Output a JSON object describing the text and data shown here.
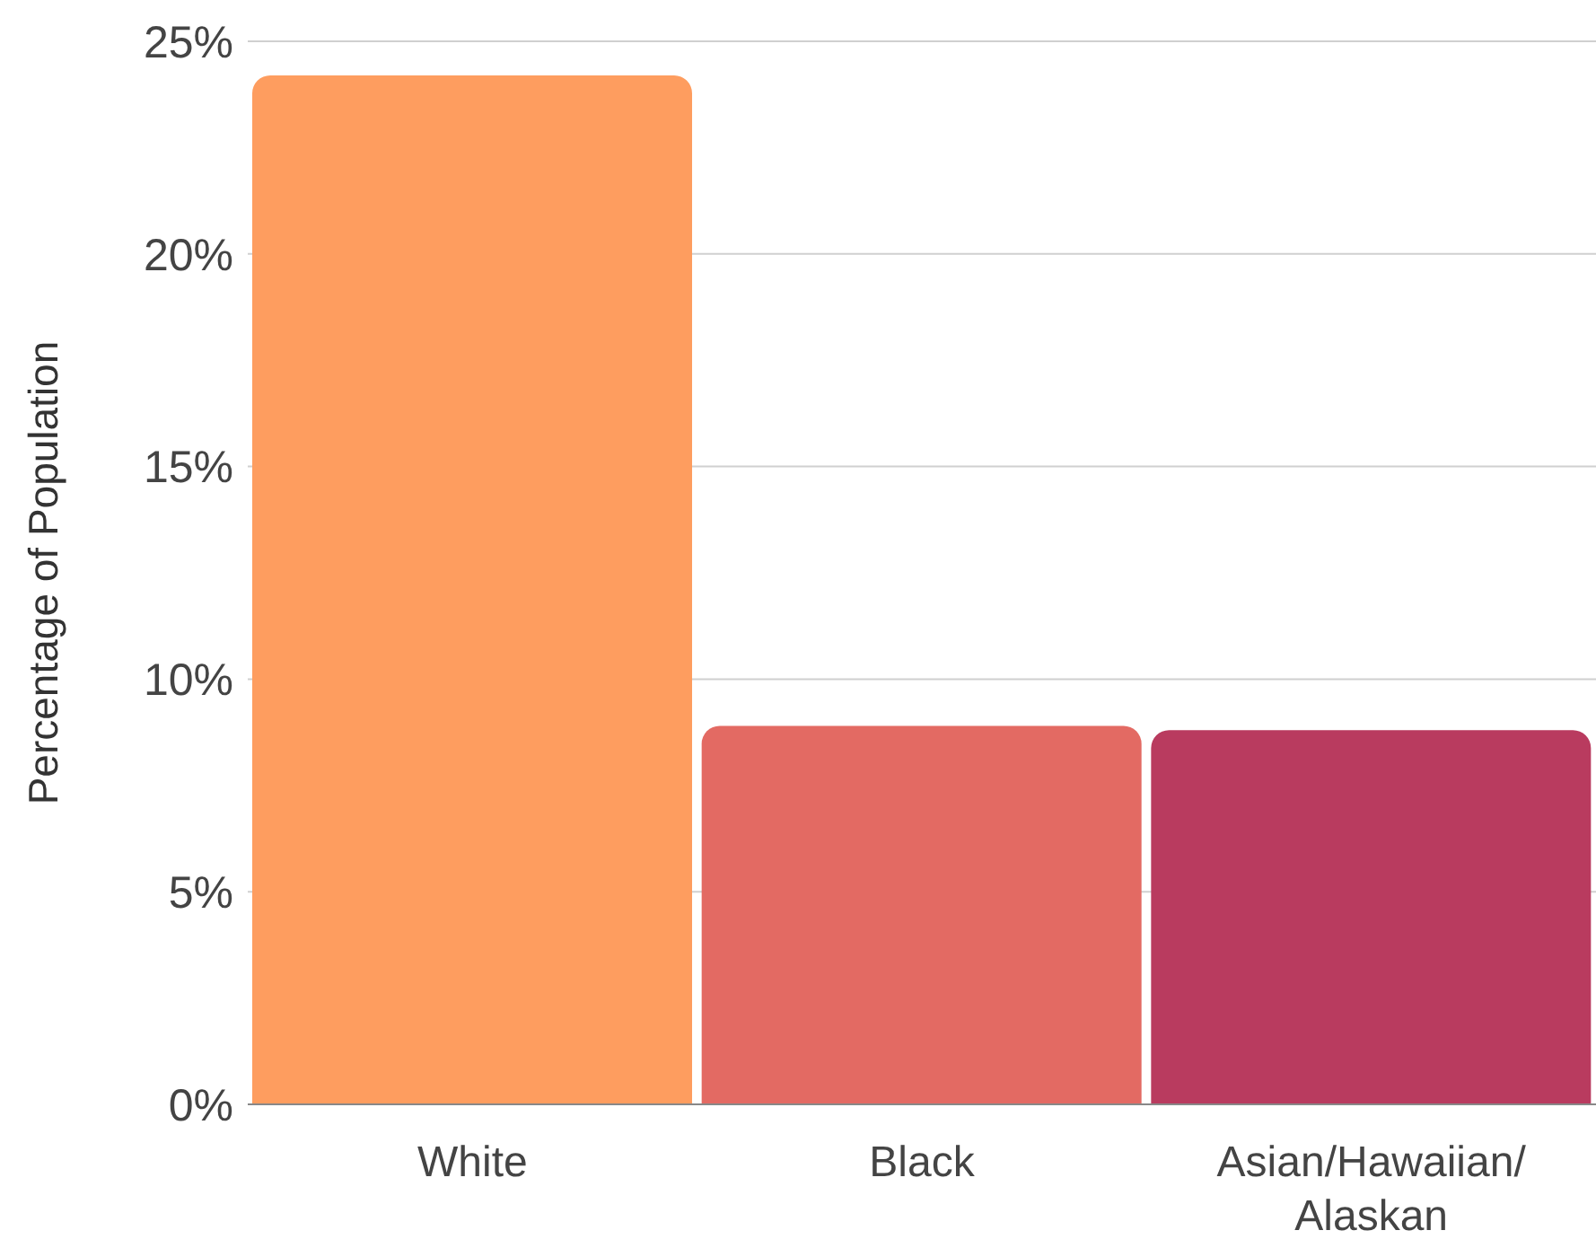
{
  "chart_data": {
    "type": "bar",
    "ylabel": "Percentage of Population",
    "categories": [
      "White",
      "Black",
      "Asian/Hawaiian/Alaskan"
    ],
    "values": [
      24.2,
      8.9,
      8.8
    ],
    "colors": [
      "#fe9d5f",
      "#e36a63",
      "#b93b5f"
    ],
    "ylim": [
      0,
      25
    ],
    "yticks": [
      {
        "value": 0,
        "label": "0%"
      },
      {
        "value": 5,
        "label": "5%"
      },
      {
        "value": 10,
        "label": "10%"
      },
      {
        "value": 15,
        "label": "15%"
      },
      {
        "value": 20,
        "label": "20%"
      },
      {
        "value": 25,
        "label": "25%"
      }
    ],
    "grid": "y",
    "legend": false
  }
}
